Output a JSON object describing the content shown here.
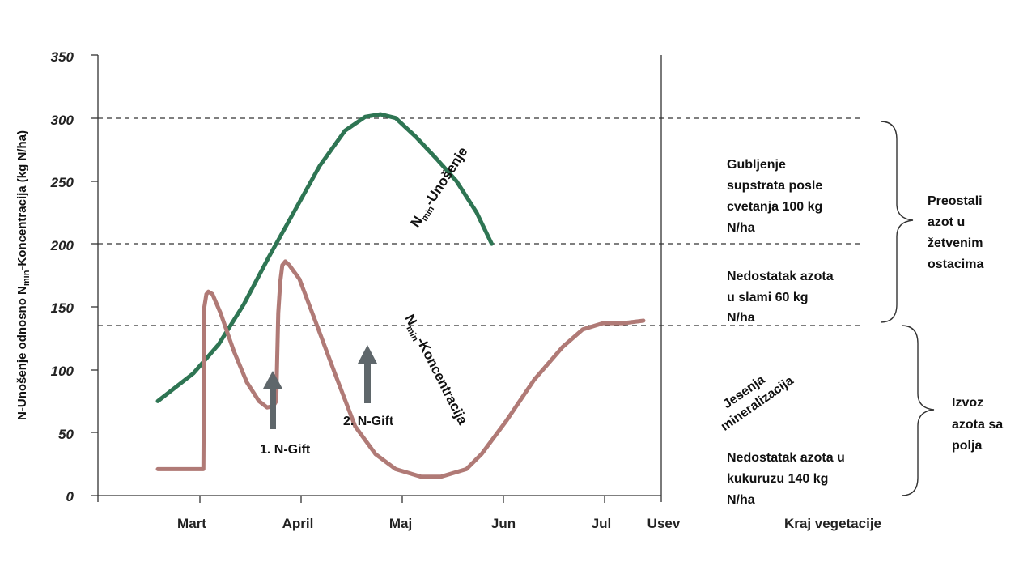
{
  "chart_data": {
    "type": "line",
    "ylabel_parts": [
      "N-Unošenje odnosno N",
      "min",
      "-Koncentracija (kg N/ha)"
    ],
    "yticks": [
      "350",
      "300",
      "250",
      "200",
      "150",
      "100",
      "50",
      "0"
    ],
    "ylim": [
      0,
      350
    ],
    "xtick_labels": [
      "Mart",
      "April",
      "Maj",
      "Jun",
      "Jul",
      "Usev",
      "Kraj vegetacije"
    ],
    "grid": false,
    "reference_lines": [
      300,
      200,
      135
    ],
    "series": [
      {
        "key": "unosenje",
        "label_parts": [
          "N",
          "min",
          "-Unošenje"
        ],
        "color": "#2e7553",
        "points": [
          [
            0.0,
            75
          ],
          [
            0.35,
            97
          ],
          [
            0.6,
            120
          ],
          [
            0.85,
            152
          ],
          [
            1.1,
            190
          ],
          [
            1.35,
            226
          ],
          [
            1.6,
            262
          ],
          [
            1.85,
            290
          ],
          [
            2.05,
            301
          ],
          [
            2.2,
            303
          ],
          [
            2.35,
            300
          ],
          [
            2.55,
            285
          ],
          [
            2.75,
            268
          ],
          [
            2.95,
            250
          ],
          [
            3.15,
            225
          ],
          [
            3.3,
            200
          ]
        ]
      },
      {
        "key": "koncentracija",
        "label_parts": [
          "N",
          "min",
          "-Koncentracija"
        ],
        "color": "#b07a76",
        "points": [
          [
            0.0,
            21
          ],
          [
            0.45,
            21
          ],
          [
            0.46,
            150
          ],
          [
            0.48,
            160
          ],
          [
            0.5,
            162
          ],
          [
            0.54,
            160
          ],
          [
            0.62,
            145
          ],
          [
            0.75,
            115
          ],
          [
            0.88,
            90
          ],
          [
            1.0,
            75
          ],
          [
            1.08,
            70
          ],
          [
            1.14,
            71
          ],
          [
            1.17,
            75
          ],
          [
            1.18,
            110
          ],
          [
            1.19,
            145
          ],
          [
            1.21,
            170
          ],
          [
            1.23,
            183
          ],
          [
            1.26,
            186
          ],
          [
            1.3,
            183
          ],
          [
            1.4,
            172
          ],
          [
            1.55,
            140
          ],
          [
            1.75,
            97
          ],
          [
            1.95,
            55
          ],
          [
            2.15,
            33
          ],
          [
            2.35,
            21
          ],
          [
            2.6,
            15
          ],
          [
            2.8,
            15
          ],
          [
            3.05,
            21
          ],
          [
            3.2,
            33
          ],
          [
            3.45,
            60
          ],
          [
            3.72,
            92
          ],
          [
            4.0,
            118
          ],
          [
            4.2,
            132
          ],
          [
            4.4,
            137
          ],
          [
            4.6,
            137
          ],
          [
            4.8,
            139
          ]
        ]
      }
    ],
    "annotations": {
      "ngift1": "1. N-Gift",
      "ngift2": "2. N-Gift",
      "jesenja": [
        "Jesenja",
        "mineralizacija"
      ],
      "gubljenje": [
        "Gubljenje",
        "supstrata posle",
        "cvetanja 100 kg",
        "N/ha"
      ],
      "nedostatak_slama": [
        "Nedostatak azota",
        "u slami 60 kg",
        "N/ha"
      ],
      "nedostatak_kukuruz": [
        "Nedostatak azota u",
        "kukuruzu 140 kg",
        "N/ha"
      ],
      "preostali": [
        "Preostali",
        "azot u",
        "žetvenim",
        "ostacima"
      ],
      "izvoz": [
        "Izvoz",
        "azota sa",
        "polja"
      ]
    },
    "colors": {
      "arrow": "#5f676b",
      "axis": "#333333",
      "dash": "#333333"
    }
  }
}
